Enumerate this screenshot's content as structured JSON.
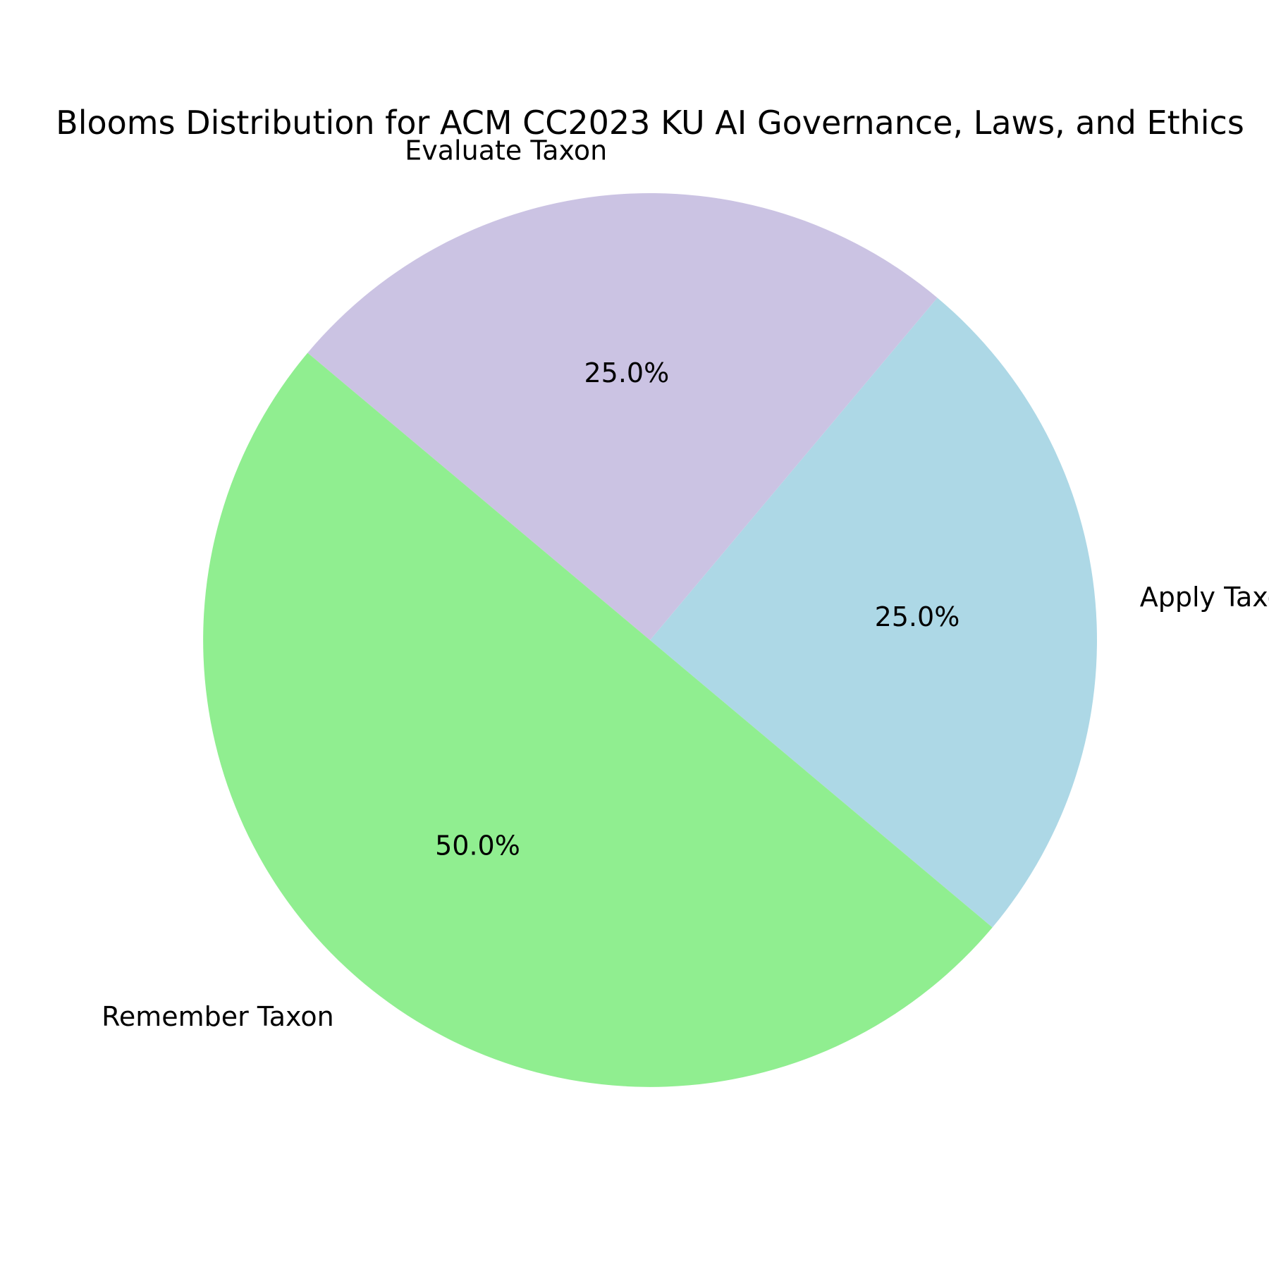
{
  "chart_data": {
    "type": "pie",
    "title": "Blooms Distribution for ACM CC2023 KU AI Governance, Laws, and Ethics",
    "slices": [
      {
        "label": "Apply Taxon",
        "value": 25.0,
        "percent_label": "25.0%",
        "color": "#add8e6"
      },
      {
        "label": "Evaluate Taxon",
        "value": 25.0,
        "percent_label": "25.0%",
        "color": "#cbc3e3"
      },
      {
        "label": "Remember Taxon",
        "value": 50.0,
        "percent_label": "50.0%",
        "color": "#90ee90"
      }
    ],
    "start_angle_deg": -40,
    "counterclockwise": true,
    "legend": "none"
  }
}
